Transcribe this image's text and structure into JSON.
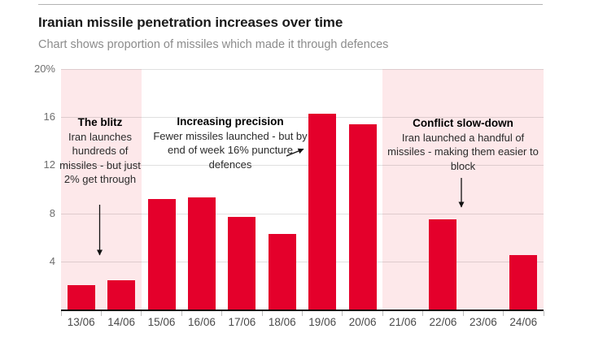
{
  "header": {
    "title": "Iranian missile penetration increases over time",
    "subtitle": "Chart shows proportion of missiles which made it through defences"
  },
  "annotations": {
    "blitz": {
      "title": "The blitz",
      "body": "Iran launches hundreds of missiles - but just 2% get through"
    },
    "precision": {
      "title": "Increasing precision",
      "body": "Fewer missiles launched - but by end of week 16% puncture defences"
    },
    "slowdown": {
      "title": "Conflict slow-down",
      "body": "Iran launched a handful of missiles - making them easier to block"
    }
  },
  "chart_data": {
    "type": "bar",
    "title": "Iranian missile penetration increases over time",
    "subtitle": "Chart shows proportion of missiles which made it through defences",
    "categories": [
      "13/06",
      "14/06",
      "15/06",
      "16/06",
      "17/06",
      "18/06",
      "19/06",
      "20/06",
      "21/06",
      "22/06",
      "23/06",
      "24/06"
    ],
    "values": [
      2,
      2.4,
      9.2,
      9.3,
      7.7,
      6.3,
      16.3,
      15.4,
      0,
      7.5,
      0,
      4.5
    ],
    "value_unit": "%",
    "xlabel": "",
    "ylabel": "",
    "ylim": [
      0,
      20
    ],
    "grid": true,
    "yticks": [
      {
        "value": 4,
        "label": "4"
      },
      {
        "value": 8,
        "label": "8"
      },
      {
        "value": 12,
        "label": "12"
      },
      {
        "value": 16,
        "label": "16"
      },
      {
        "value": 20,
        "label": "20%"
      }
    ],
    "highlight_ranges": [
      {
        "from": "13/06",
        "to": "14/06"
      },
      {
        "from": "21/06",
        "to": "24/06"
      }
    ],
    "colors": {
      "bar": "#e4002b",
      "band": "#fde8ea",
      "gridline": "#dddddd",
      "axis": "#111111",
      "title_text": "#1a1a1a",
      "subtitle_text": "#8c8c8c"
    }
  }
}
